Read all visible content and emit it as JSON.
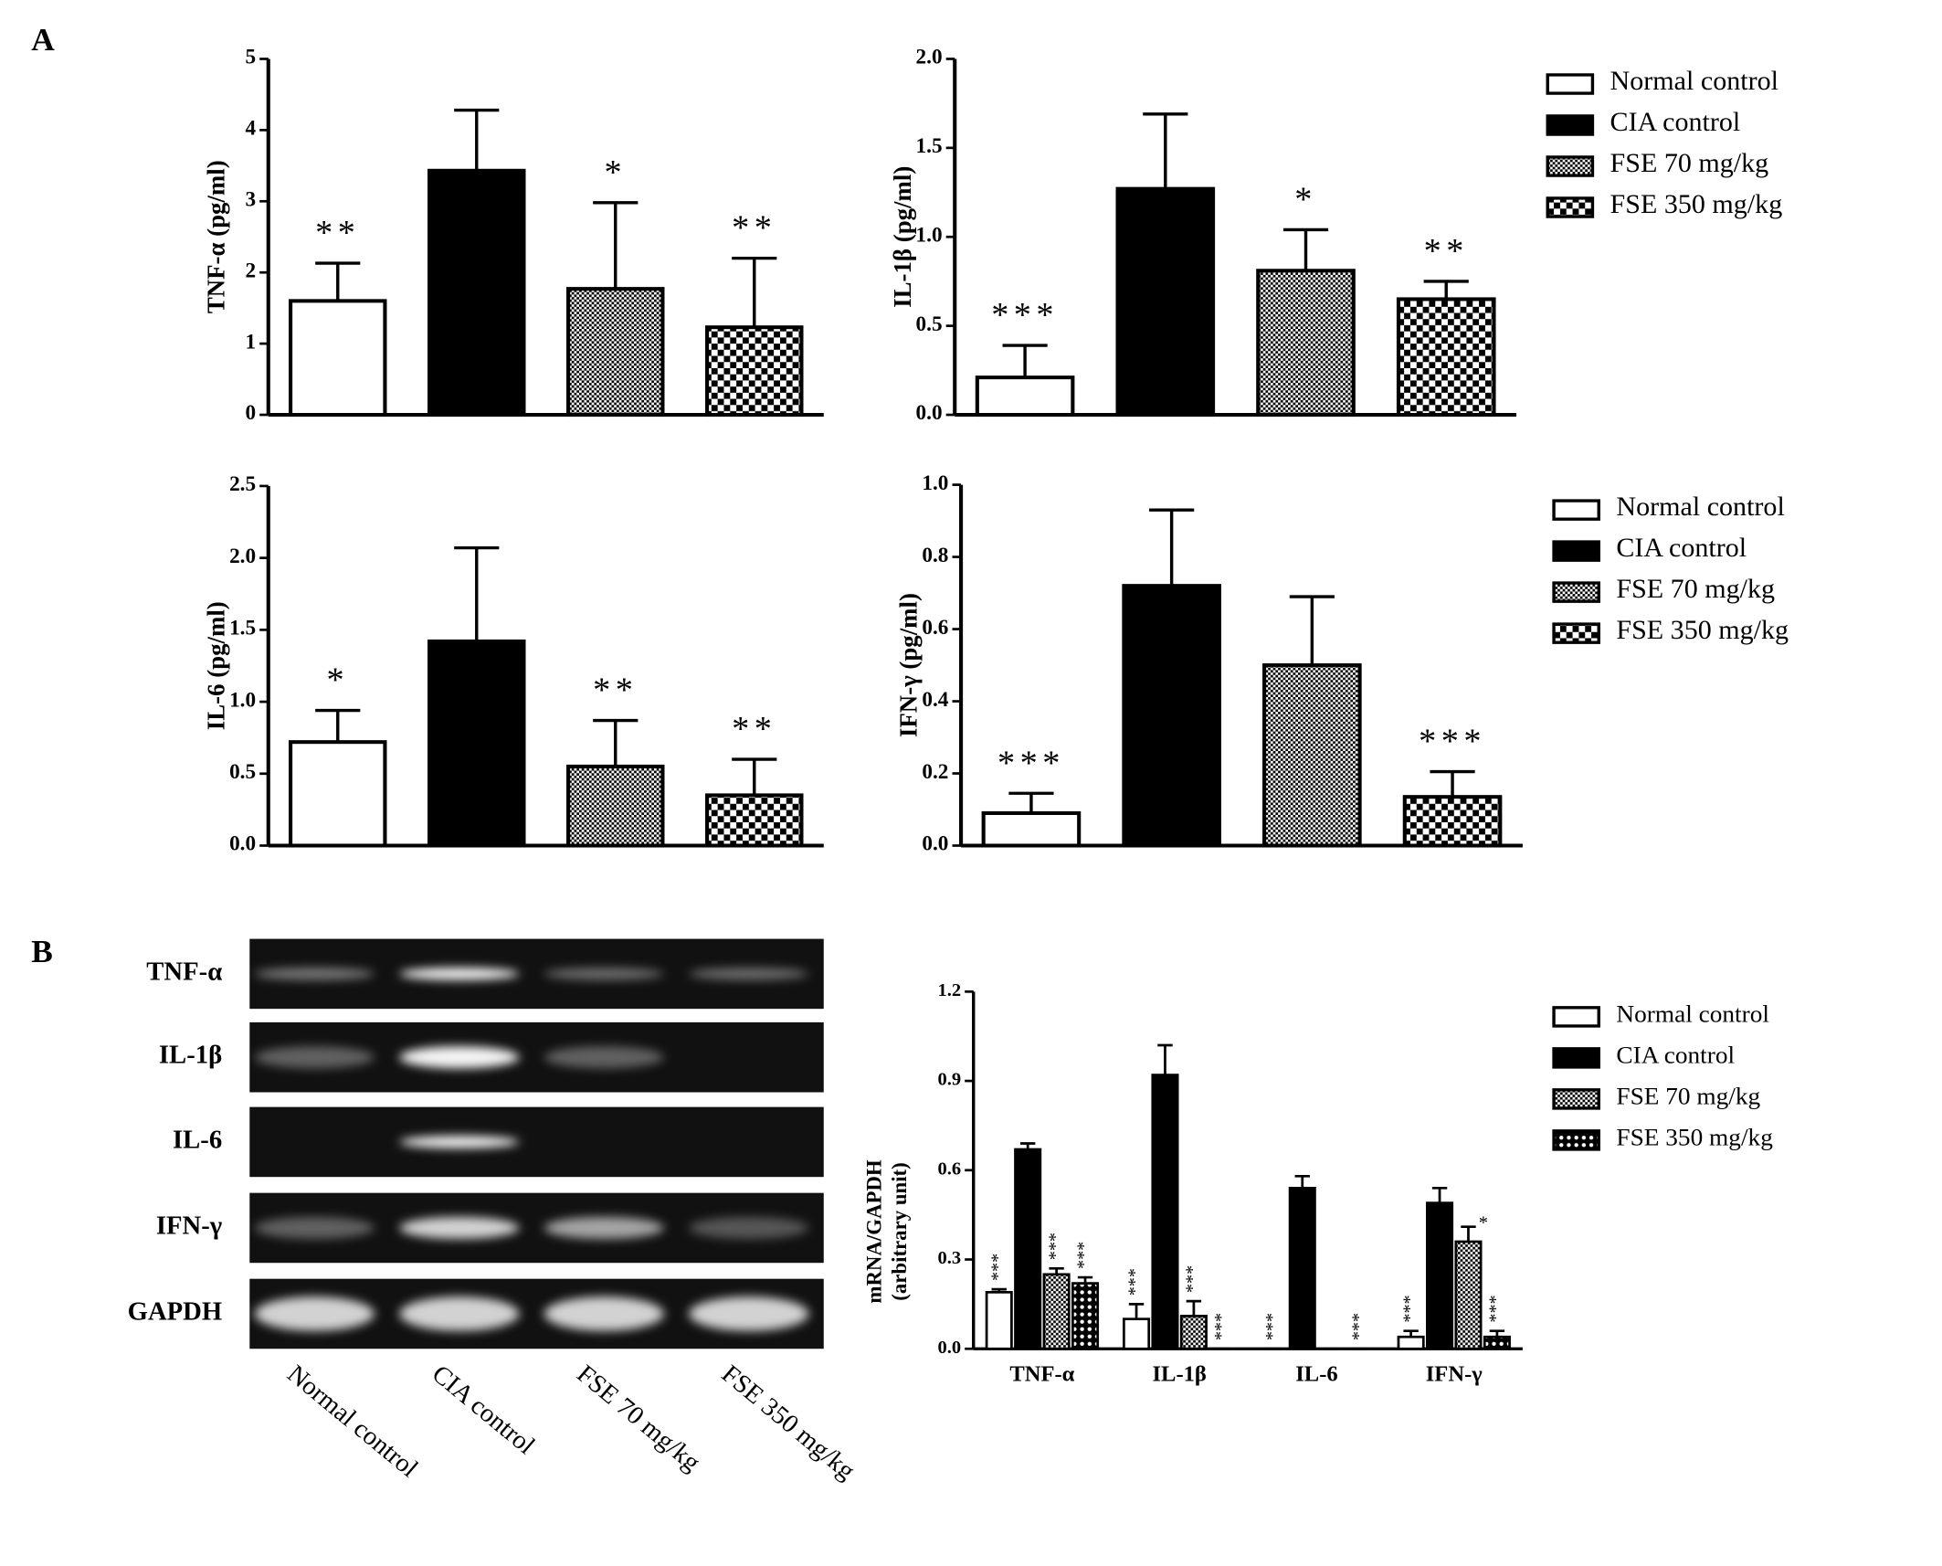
{
  "panels": [
    "A",
    "B"
  ],
  "gel": {
    "rows": [
      "TNF-α",
      "IL-1β",
      "IL-6",
      "IFN-γ",
      "GAPDH"
    ],
    "lanes": [
      "Normal control",
      "CIA control",
      "FSE 70 mg/kg",
      "FSE 350 mg/kg"
    ]
  },
  "chart_data": [
    {
      "type": "bar",
      "ylabel": "TNF-α (pg/ml)",
      "ylim": [
        0,
        5
      ],
      "yticks": [
        0,
        1,
        2,
        3,
        4,
        5
      ],
      "series": [
        {
          "pattern": "white",
          "values": [
            1.6
          ],
          "errors": [
            0.53
          ],
          "annotations": [
            "**"
          ]
        },
        {
          "pattern": "black",
          "values": [
            3.43
          ],
          "errors": [
            0.85
          ],
          "annotations": [
            null
          ]
        },
        {
          "pattern": "fine",
          "values": [
            1.77
          ],
          "errors": [
            1.21
          ],
          "annotations": [
            "*"
          ]
        },
        {
          "pattern": "coarse",
          "values": [
            1.23
          ],
          "errors": [
            0.97
          ],
          "annotations": [
            "**"
          ]
        }
      ]
    },
    {
      "type": "bar",
      "ylabel": "IL-1β (pg/ml)",
      "ylim": [
        0,
        2
      ],
      "legend": "right",
      "yticks": [
        {
          "value": 0,
          "label": "0.0"
        },
        0.5,
        {
          "value": 1,
          "label": "1.0"
        },
        1.5,
        {
          "value": 2,
          "label": "2.0"
        }
      ],
      "series": [
        {
          "name": "Normal control",
          "pattern": "white",
          "values": [
            0.21
          ],
          "errors": [
            0.18
          ],
          "annotations": [
            "***"
          ]
        },
        {
          "name": "CIA control",
          "pattern": "black",
          "values": [
            1.27
          ],
          "errors": [
            0.42
          ],
          "annotations": [
            null
          ]
        },
        {
          "name": "FSE 70 mg/kg",
          "pattern": "fine",
          "values": [
            0.81
          ],
          "errors": [
            0.23
          ],
          "annotations": [
            "*"
          ]
        },
        {
          "name": "FSE 350 mg/kg",
          "pattern": "coarse",
          "values": [
            0.65
          ],
          "errors": [
            0.1
          ],
          "annotations": [
            "**"
          ]
        }
      ]
    },
    {
      "type": "bar",
      "ylabel": "IL-6 (pg/ml)",
      "ylim": [
        0,
        2.5
      ],
      "yticks": [
        {
          "value": 0,
          "label": "0.0"
        },
        0.5,
        {
          "value": 1,
          "label": "1.0"
        },
        1.5,
        {
          "value": 2,
          "label": "2.0"
        },
        2.5
      ],
      "series": [
        {
          "pattern": "white",
          "values": [
            0.72
          ],
          "errors": [
            0.22
          ],
          "annotations": [
            "*"
          ]
        },
        {
          "pattern": "black",
          "values": [
            1.42
          ],
          "errors": [
            0.65
          ],
          "annotations": [
            null
          ]
        },
        {
          "pattern": "fine",
          "values": [
            0.55
          ],
          "errors": [
            0.32
          ],
          "annotations": [
            "**"
          ]
        },
        {
          "pattern": "coarse",
          "values": [
            0.35
          ],
          "errors": [
            0.25
          ],
          "annotations": [
            "**"
          ]
        }
      ]
    },
    {
      "type": "bar",
      "ylabel": "IFN-γ (pg/ml)",
      "ylim": [
        0,
        1
      ],
      "legend": "right",
      "yticks": [
        {
          "value": 0,
          "label": "0.0"
        },
        0.2,
        0.4,
        0.6,
        0.8,
        {
          "value": 1,
          "label": "1.0"
        }
      ],
      "series": [
        {
          "name": "Normal control",
          "pattern": "white",
          "values": [
            0.09
          ],
          "errors": [
            0.055
          ],
          "annotations": [
            "***"
          ]
        },
        {
          "name": "CIA control",
          "pattern": "black",
          "values": [
            0.72
          ],
          "errors": [
            0.21
          ],
          "annotations": [
            null
          ]
        },
        {
          "name": "FSE 70 mg/kg",
          "pattern": "fine",
          "values": [
            0.5
          ],
          "errors": [
            0.19
          ],
          "annotations": [
            null
          ]
        },
        {
          "name": "FSE 350 mg/kg",
          "pattern": "coarse",
          "values": [
            0.135
          ],
          "errors": [
            0.07
          ],
          "annotations": [
            "***"
          ]
        }
      ]
    },
    {
      "type": "bar",
      "ylabel": [
        "mRNA/GAPDH",
        "(arbitrary unit)"
      ],
      "ylim": [
        0,
        1.2
      ],
      "legend": "right",
      "yticks": [
        {
          "value": 0,
          "label": "0.0"
        },
        0.3,
        0.6,
        0.9,
        1.2
      ],
      "categories": [
        "TNF-α",
        "IL-1β",
        "IL-6",
        "IFN-γ"
      ],
      "series": [
        {
          "name": "Normal control",
          "pattern": "white",
          "values": [
            0.19,
            0.1,
            0,
            0.04
          ],
          "errors": [
            0.01,
            0.05,
            0,
            0.02
          ],
          "annotations": [
            "***",
            "***",
            "***",
            "***"
          ]
        },
        {
          "name": "CIA control",
          "pattern": "black",
          "values": [
            0.67,
            0.92,
            0.54,
            0.49
          ],
          "errors": [
            0.02,
            0.1,
            0.04,
            0.05
          ],
          "annotations": [
            null,
            null,
            null,
            null
          ]
        },
        {
          "name": "FSE 70 mg/kg",
          "pattern": "fine",
          "values": [
            0.25,
            0.11,
            0,
            0.36
          ],
          "errors": [
            0.02,
            0.05,
            0,
            0.05
          ],
          "annotations": [
            "***",
            "***",
            null,
            "*"
          ]
        },
        {
          "name": "FSE 350 mg/kg",
          "pattern": "xdot",
          "values": [
            0.22,
            0,
            0,
            0.04
          ],
          "errors": [
            0.02,
            0,
            0,
            0.02
          ],
          "annotations": [
            "***",
            "***",
            "***",
            "***"
          ]
        }
      ]
    }
  ]
}
